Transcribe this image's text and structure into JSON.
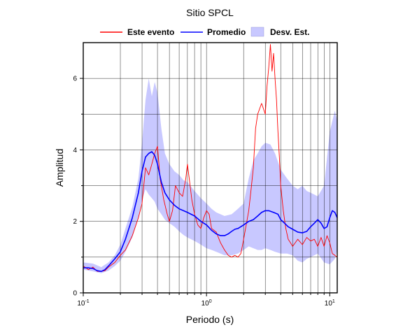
{
  "chart_data": {
    "type": "line",
    "title": "Sitio SPCL",
    "xlabel": "Periodo (s)",
    "ylabel": "Amplitud",
    "xscale": "log",
    "xlim": [
      0.1,
      11.5
    ],
    "ylim": [
      0,
      7.0
    ],
    "grid": true,
    "legend_position": "top",
    "x_ticks": [
      0.1,
      1,
      10
    ],
    "x_tick_labels": [
      "10-1",
      "100",
      "101"
    ],
    "y_ticks": [
      0,
      2,
      4,
      6
    ],
    "y_tick_labels": [
      "0",
      "2",
      "4",
      "6"
    ],
    "series": [
      {
        "name": "Este evento",
        "color": "#ff0000",
        "kind": "line",
        "x": [
          0.1,
          0.11,
          0.12,
          0.13,
          0.14,
          0.15,
          0.16,
          0.18,
          0.2,
          0.22,
          0.25,
          0.28,
          0.3,
          0.32,
          0.34,
          0.36,
          0.38,
          0.4,
          0.42,
          0.45,
          0.48,
          0.5,
          0.53,
          0.56,
          0.6,
          0.64,
          0.68,
          0.7,
          0.73,
          0.76,
          0.8,
          0.85,
          0.9,
          0.95,
          1.0,
          1.05,
          1.1,
          1.2,
          1.3,
          1.4,
          1.5,
          1.6,
          1.7,
          1.8,
          1.9,
          2.0,
          2.1,
          2.2,
          2.3,
          2.4,
          2.5,
          2.6,
          2.8,
          3.0,
          3.1,
          3.2,
          3.3,
          3.4,
          3.5,
          3.6,
          3.7,
          3.8,
          3.9,
          4.0,
          4.2,
          4.4,
          4.6,
          4.8,
          5.0,
          5.5,
          6.0,
          6.5,
          7.0,
          7.5,
          8.0,
          8.5,
          9.0,
          9.5,
          10.0,
          10.5,
          11.0,
          11.5
        ],
        "values": [
          0.75,
          0.65,
          0.72,
          0.6,
          0.6,
          0.62,
          0.72,
          0.85,
          1.05,
          1.2,
          1.6,
          2.1,
          2.5,
          3.5,
          3.3,
          3.6,
          3.9,
          4.1,
          3.2,
          2.6,
          2.2,
          2.0,
          2.3,
          3.0,
          2.8,
          2.7,
          3.2,
          3.6,
          3.1,
          2.6,
          2.2,
          1.9,
          1.8,
          2.1,
          2.3,
          2.2,
          1.8,
          1.7,
          1.4,
          1.2,
          1.05,
          1.0,
          1.05,
          1.0,
          1.1,
          1.5,
          1.9,
          2.3,
          2.9,
          3.5,
          4.6,
          5.0,
          5.3,
          5.0,
          5.8,
          6.3,
          6.95,
          6.2,
          6.7,
          6.0,
          5.4,
          4.5,
          3.8,
          3.0,
          2.3,
          1.8,
          1.5,
          1.4,
          1.3,
          1.5,
          1.35,
          1.55,
          1.45,
          1.5,
          1.3,
          1.55,
          1.3,
          1.6,
          1.4,
          1.1,
          1.05,
          1.0
        ]
      },
      {
        "name": "Promedio",
        "color": "#0000ff",
        "kind": "line",
        "x": [
          0.1,
          0.11,
          0.12,
          0.13,
          0.14,
          0.15,
          0.16,
          0.18,
          0.2,
          0.22,
          0.25,
          0.28,
          0.3,
          0.32,
          0.34,
          0.36,
          0.38,
          0.4,
          0.43,
          0.46,
          0.5,
          0.55,
          0.6,
          0.65,
          0.7,
          0.75,
          0.8,
          0.9,
          1.0,
          1.1,
          1.2,
          1.3,
          1.4,
          1.5,
          1.6,
          1.7,
          1.8,
          2.0,
          2.2,
          2.4,
          2.6,
          2.8,
          3.0,
          3.2,
          3.5,
          3.8,
          4.0,
          4.3,
          4.6,
          5.0,
          5.5,
          6.0,
          6.5,
          7.0,
          7.5,
          8.0,
          8.5,
          9.0,
          9.5,
          10.0,
          10.5,
          11.0,
          11.5
        ],
        "values": [
          0.7,
          0.7,
          0.68,
          0.62,
          0.6,
          0.65,
          0.75,
          0.95,
          1.15,
          1.5,
          2.1,
          2.8,
          3.4,
          3.8,
          3.9,
          3.95,
          3.85,
          3.6,
          3.1,
          2.8,
          2.6,
          2.45,
          2.35,
          2.3,
          2.25,
          2.2,
          2.15,
          2.0,
          1.9,
          1.75,
          1.65,
          1.6,
          1.6,
          1.65,
          1.72,
          1.78,
          1.8,
          1.9,
          2.0,
          2.05,
          2.15,
          2.25,
          2.3,
          2.3,
          2.25,
          2.2,
          2.05,
          1.95,
          1.85,
          1.78,
          1.7,
          1.68,
          1.72,
          1.85,
          1.95,
          2.05,
          1.95,
          1.8,
          1.85,
          2.1,
          2.3,
          2.25,
          2.1
        ]
      },
      {
        "name": "Desv. Est.",
        "color": "#c8c8ff",
        "kind": "band",
        "x": [
          0.1,
          0.12,
          0.14,
          0.16,
          0.18,
          0.2,
          0.22,
          0.25,
          0.28,
          0.3,
          0.32,
          0.34,
          0.36,
          0.38,
          0.4,
          0.43,
          0.46,
          0.5,
          0.55,
          0.6,
          0.65,
          0.7,
          0.8,
          0.9,
          1.0,
          1.1,
          1.2,
          1.4,
          1.6,
          1.8,
          2.0,
          2.2,
          2.4,
          2.6,
          2.8,
          3.0,
          3.3,
          3.6,
          4.0,
          4.5,
          5.0,
          5.5,
          6.0,
          6.5,
          7.0,
          8.0,
          9.0,
          10.0,
          11.0,
          11.5
        ],
        "upper": [
          0.85,
          0.82,
          0.72,
          0.85,
          1.05,
          1.35,
          1.8,
          2.4,
          3.2,
          4.2,
          5.4,
          6.0,
          5.5,
          5.9,
          5.6,
          4.6,
          3.9,
          3.6,
          3.4,
          3.3,
          3.15,
          3.1,
          2.85,
          2.65,
          2.5,
          2.35,
          2.25,
          2.15,
          2.2,
          2.35,
          2.5,
          3.2,
          3.7,
          3.9,
          4.1,
          4.2,
          4.15,
          3.9,
          3.45,
          3.2,
          3.0,
          2.9,
          3.0,
          2.85,
          2.8,
          2.7,
          3.0,
          4.5,
          5.1,
          4.8
        ],
        "lower": [
          0.65,
          0.6,
          0.55,
          0.62,
          0.75,
          0.9,
          1.15,
          1.55,
          2.1,
          2.6,
          2.9,
          2.75,
          2.65,
          2.55,
          2.35,
          2.2,
          2.05,
          1.95,
          1.85,
          1.72,
          1.62,
          1.55,
          1.45,
          1.35,
          1.25,
          1.2,
          1.15,
          1.05,
          1.05,
          1.1,
          1.2,
          1.3,
          1.25,
          1.2,
          1.2,
          1.25,
          1.2,
          1.15,
          1.1,
          1.1,
          1.05,
          0.9,
          0.85,
          0.95,
          1.0,
          1.1,
          0.85,
          0.8,
          0.95,
          1.2
        ]
      }
    ]
  }
}
